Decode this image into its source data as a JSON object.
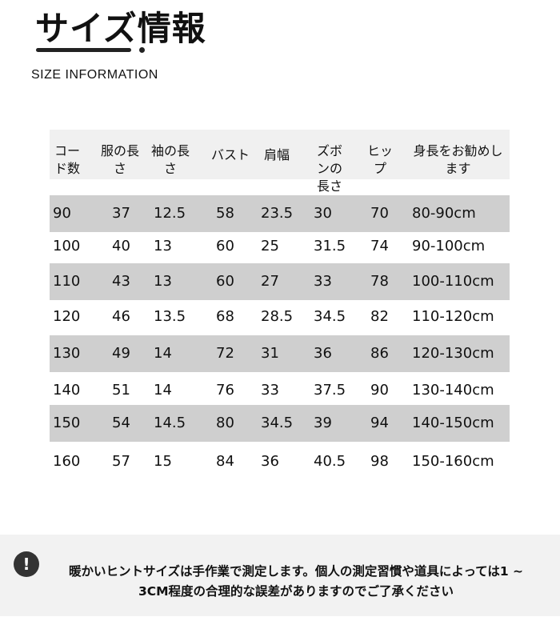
{
  "header": {
    "title": "サイズ情報",
    "subtitle": "SIZE INFORMATION"
  },
  "table": {
    "columns": [
      "コード数",
      "服の長さ",
      "袖の長さ",
      "バスト",
      "肩幅",
      "ズボンの長さ",
      "ヒップ",
      "身長をお勧めします"
    ],
    "rows": [
      [
        "90",
        "37",
        "12.5",
        "58",
        "23.5",
        "30",
        "70",
        "80-90cm"
      ],
      [
        "100",
        "40",
        "13",
        "60",
        "25",
        "31.5",
        "74",
        "90-100cm"
      ],
      [
        "110",
        "43",
        "13",
        "60",
        "27",
        "33",
        "78",
        "100-110cm"
      ],
      [
        "120",
        "46",
        "13.5",
        "68",
        "28.5",
        "34.5",
        "82",
        "110-120cm"
      ],
      [
        "130",
        "49",
        "14",
        "72",
        "31",
        "36",
        "86",
        "120-130cm"
      ],
      [
        "140",
        "51",
        "14",
        "76",
        "33",
        "37.5",
        "90",
        "130-140cm"
      ],
      [
        "150",
        "54",
        "14.5",
        "80",
        "34.5",
        "39",
        "94",
        "140-150cm"
      ],
      [
        "160",
        "57",
        "15",
        "84",
        "36",
        "40.5",
        "98",
        "150-160cm"
      ]
    ],
    "shade_color": "#cfcfcf"
  },
  "note": {
    "icon": "exclamation-icon",
    "text": "暖かいヒントサイズは手作業で測定します。個人の測定習慣や道具によっては1 ~ 3CM程度の合理的な誤差がありますのでご了承ください"
  }
}
